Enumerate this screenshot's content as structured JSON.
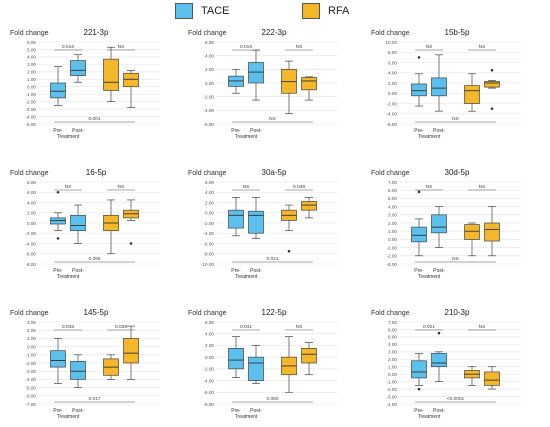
{
  "legend": {
    "items": [
      {
        "label": "TACE",
        "color": "#5BC0EB"
      },
      {
        "label": "RFA",
        "color": "#F5B72A"
      }
    ]
  },
  "chart_data": [
    {
      "type": "box",
      "title": "221-3p",
      "ylabel": "Fold change",
      "yticks": [
        "-5.00",
        "-4.00",
        "-3.00",
        "-2.00",
        "-1.00",
        "0.00",
        "1.00",
        "2.00",
        "3.00",
        "4.00",
        "5.00",
        "6.00"
      ],
      "ylim": [
        -5,
        6
      ],
      "categories": [
        "Pre-",
        "Post-"
      ],
      "xlabel": "Treatment",
      "series": [
        {
          "color": "#5BC0EB",
          "boxes": [
            {
              "min": -2.5,
              "q1": -1.5,
              "median": -0.6,
              "q3": 0.5,
              "max": 2.7,
              "outliers": []
            },
            {
              "min": 0.6,
              "q1": 1.5,
              "median": 2.2,
              "q3": 3.5,
              "max": 4.3,
              "outliers": []
            }
          ]
        },
        {
          "color": "#F5B72A",
          "boxes": [
            {
              "min": -2.0,
              "q1": -0.5,
              "median": 0.6,
              "q3": 3.7,
              "max": 5.3,
              "outliers": []
            },
            {
              "min": -2.8,
              "q1": 0.0,
              "median": 1.0,
              "q3": 1.8,
              "max": 2.2,
              "outliers": []
            }
          ]
        }
      ],
      "annotations": [
        {
          "text": "0.016",
          "type": "top",
          "from": 0,
          "to": 1
        },
        {
          "text": "NS",
          "type": "top",
          "from": 2,
          "to": 3
        },
        {
          "text": "0.001",
          "type": "bottom",
          "from": 0,
          "to": 2
        }
      ]
    },
    {
      "type": "box",
      "title": "222-3p",
      "ylabel": "Fold change",
      "yticks": [
        "-6.00",
        "-4.00",
        "-2.00",
        "0.00",
        "2.00",
        "4.00",
        "6.00"
      ],
      "ylim": [
        -6,
        6
      ],
      "categories": [
        "Pre-",
        "Post-"
      ],
      "xlabel": "Treatment",
      "series": [
        {
          "color": "#5BC0EB",
          "boxes": [
            {
              "min": -1.5,
              "q1": -0.5,
              "median": 0.3,
              "q3": 1.0,
              "max": 2.0,
              "outliers": []
            },
            {
              "min": -2.5,
              "q1": 0.0,
              "median": 1.6,
              "q3": 3.0,
              "max": 4.8,
              "outliers": []
            }
          ]
        },
        {
          "color": "#F5B72A",
          "boxes": [
            {
              "min": -4.5,
              "q1": -1.5,
              "median": 0.2,
              "q3": 2.0,
              "max": 3.2,
              "outliers": []
            },
            {
              "min": -2.5,
              "q1": -1.0,
              "median": 0.3,
              "q3": 0.8,
              "max": 0.9,
              "outliers": []
            }
          ]
        }
      ],
      "annotations": [
        {
          "text": "0.019",
          "type": "top",
          "from": 0,
          "to": 1
        },
        {
          "text": "NS",
          "type": "top",
          "from": 2,
          "to": 3
        },
        {
          "text": "NS",
          "type": "bottom",
          "from": 0,
          "to": 2
        }
      ]
    },
    {
      "type": "box",
      "title": "15b-5p",
      "ylabel": "Fold change",
      "yticks": [
        "-6.00",
        "-4.00",
        "-2.00",
        "0.00",
        "2.00",
        "4.00",
        "6.00",
        "8.00",
        "10.00"
      ],
      "ylim": [
        -6,
        10
      ],
      "categories": [
        "Pre-",
        "Post-"
      ],
      "xlabel": "Treatment",
      "series": [
        {
          "color": "#5BC0EB",
          "boxes": [
            {
              "min": -2.5,
              "q1": -0.5,
              "median": 0.5,
              "q3": 1.8,
              "max": 3.8,
              "outliers": [
                7.0
              ]
            },
            {
              "min": -3.5,
              "q1": -0.5,
              "median": 1.0,
              "q3": 3.0,
              "max": 7.5,
              "outliers": []
            }
          ]
        },
        {
          "color": "#F5B72A",
          "boxes": [
            {
              "min": -3.5,
              "q1": -2.0,
              "median": 0.5,
              "q3": 1.5,
              "max": 3.8,
              "outliers": []
            },
            {
              "min": 1.0,
              "q1": 1.2,
              "median": 2.0,
              "q3": 2.3,
              "max": 2.5,
              "outliers": [
                4.5,
                -3.0
              ]
            }
          ]
        }
      ],
      "annotations": [
        {
          "text": "NS",
          "type": "top",
          "from": 0,
          "to": 1
        },
        {
          "text": "NS",
          "type": "top",
          "from": 2,
          "to": 3
        },
        {
          "text": "NS",
          "type": "bottom",
          "from": 0,
          "to": 2
        }
      ]
    },
    {
      "type": "box",
      "title": "16-5p",
      "ylabel": "Fold change",
      "yticks": [
        "-8.00",
        "-6.00",
        "-4.00",
        "-2.00",
        "0.00",
        "2.00",
        "4.00",
        "6.00",
        "8.00"
      ],
      "ylim": [
        -8,
        8
      ],
      "categories": [
        "Pre-",
        "Post-"
      ],
      "xlabel": "Treatment",
      "series": [
        {
          "color": "#5BC0EB",
          "boxes": [
            {
              "min": -1.5,
              "q1": -0.2,
              "median": 0.5,
              "q3": 1.0,
              "max": 2.0,
              "outliers": [
                6.0,
                -3.0
              ]
            },
            {
              "min": -4.0,
              "q1": -1.5,
              "median": -0.5,
              "q3": 1.5,
              "max": 3.5,
              "outliers": []
            }
          ]
        },
        {
          "color": "#F5B72A",
          "boxes": [
            {
              "min": -6.0,
              "q1": -1.5,
              "median": 0.0,
              "q3": 1.5,
              "max": 4.5,
              "outliers": []
            },
            {
              "min": 0.5,
              "q1": 1.0,
              "median": 1.8,
              "q3": 2.5,
              "max": 4.5,
              "outliers": [
                -4.0
              ]
            }
          ]
        }
      ],
      "annotations": [
        {
          "text": "NS",
          "type": "top",
          "from": 0,
          "to": 1
        },
        {
          "text": "NS",
          "type": "top",
          "from": 2,
          "to": 3
        },
        {
          "text": "0.066",
          "type": "bottom",
          "from": 0,
          "to": 2
        }
      ]
    },
    {
      "type": "box",
      "title": "30a-5p",
      "ylabel": "Fold change",
      "yticks": [
        "-10.00",
        "-8.00",
        "-6.00",
        "-4.00",
        "-2.00",
        "0.00",
        "2.00",
        "4.00",
        "6.00"
      ],
      "ylim": [
        -10,
        6
      ],
      "categories": [
        "Pre-",
        "Post-"
      ],
      "xlabel": "Treatment",
      "series": [
        {
          "color": "#5BC0EB",
          "boxes": [
            {
              "min": -4.5,
              "q1": -3.0,
              "median": -0.5,
              "q3": 0.5,
              "max": 3.0,
              "outliers": []
            },
            {
              "min": -5.0,
              "q1": -4.0,
              "median": -0.5,
              "q3": 0.3,
              "max": 3.0,
              "outliers": []
            }
          ]
        },
        {
          "color": "#F5B72A",
          "boxes": [
            {
              "min": -3.5,
              "q1": -1.5,
              "median": -0.5,
              "q3": 0.5,
              "max": 1.5,
              "outliers": [
                -7.5
              ]
            },
            {
              "min": -1.0,
              "q1": 0.5,
              "median": 1.5,
              "q3": 2.2,
              "max": 3.0,
              "outliers": []
            }
          ]
        }
      ],
      "annotations": [
        {
          "text": "NS",
          "type": "top",
          "from": 0,
          "to": 1
        },
        {
          "text": "0.038",
          "type": "top",
          "from": 2,
          "to": 3
        },
        {
          "text": "0.021",
          "type": "bottom",
          "from": 0,
          "to": 2
        }
      ]
    },
    {
      "type": "box",
      "title": "30d-5p",
      "ylabel": "Fold change",
      "yticks": [
        "-3.00",
        "-2.00",
        "-1.00",
        "0.00",
        "1.00",
        "2.00",
        "3.00",
        "4.00",
        "5.00",
        "6.00",
        "7.00"
      ],
      "ylim": [
        -3,
        7
      ],
      "categories": [
        "Pre-",
        "Post-"
      ],
      "xlabel": "Treatment",
      "series": [
        {
          "color": "#5BC0EB",
          "boxes": [
            {
              "min": -2.0,
              "q1": -0.3,
              "median": 0.5,
              "q3": 1.5,
              "max": 2.5,
              "outliers": [
                5.8
              ]
            },
            {
              "min": -1.0,
              "q1": 0.8,
              "median": 1.5,
              "q3": 3.0,
              "max": 4.0,
              "outliers": []
            }
          ]
        },
        {
          "color": "#F5B72A",
          "boxes": [
            {
              "min": -2.0,
              "q1": 0.0,
              "median": 1.0,
              "q3": 1.8,
              "max": 2.0,
              "outliers": []
            },
            {
              "min": -2.0,
              "q1": -0.2,
              "median": 1.2,
              "q3": 2.0,
              "max": 4.0,
              "outliers": []
            }
          ]
        }
      ],
      "annotations": [
        {
          "text": "NS",
          "type": "top",
          "from": 0,
          "to": 1
        },
        {
          "text": "NS",
          "type": "top",
          "from": 2,
          "to": 3
        },
        {
          "text": "NS",
          "type": "bottom",
          "from": 0,
          "to": 2
        }
      ]
    },
    {
      "type": "box",
      "title": "145-5p",
      "ylabel": "Fold change",
      "yticks": [
        "-7.00",
        "-6.00",
        "-5.00",
        "-4.00",
        "-3.00",
        "-2.00",
        "-1.00",
        "0.00",
        "1.00",
        "2.00",
        "3.00"
      ],
      "ylim": [
        -7,
        3
      ],
      "categories": [
        "Pre-",
        "Post-"
      ],
      "xlabel": "Treatment",
      "series": [
        {
          "color": "#5BC0EB",
          "boxes": [
            {
              "min": -4.5,
              "q1": -2.5,
              "median": -1.7,
              "q3": -0.5,
              "max": 1.0,
              "outliers": []
            },
            {
              "min": -5.0,
              "q1": -4.0,
              "median": -3.0,
              "q3": -1.8,
              "max": -1.0,
              "outliers": []
            }
          ]
        },
        {
          "color": "#F5B72A",
          "boxes": [
            {
              "min": -4.0,
              "q1": -3.5,
              "median": -2.5,
              "q3": -1.5,
              "max": -1.0,
              "outliers": []
            },
            {
              "min": -4.0,
              "q1": -2.0,
              "median": -0.8,
              "q3": 1.0,
              "max": 2.5,
              "outliers": []
            }
          ]
        }
      ],
      "annotations": [
        {
          "text": "0.038",
          "type": "top",
          "from": 0,
          "to": 1
        },
        {
          "text": "0.038",
          "type": "top",
          "from": 2,
          "to": 3
        },
        {
          "text": "0.017",
          "type": "bottom",
          "from": 0,
          "to": 2
        }
      ]
    },
    {
      "type": "box",
      "title": "122-5p",
      "ylabel": "Fold change",
      "yticks": [
        "-8.00",
        "-6.00",
        "-4.00",
        "-2.00",
        "0.00",
        "2.00",
        "4.00",
        "6.00"
      ],
      "ylim": [
        -8,
        6
      ],
      "categories": [
        "Pre-",
        "Post-"
      ],
      "xlabel": "Treatment",
      "series": [
        {
          "color": "#5BC0EB",
          "boxes": [
            {
              "min": -3.5,
              "q1": -2.0,
              "median": -0.5,
              "q3": 1.5,
              "max": 3.5,
              "outliers": []
            },
            {
              "min": -4.5,
              "q1": -4.0,
              "median": -1.0,
              "q3": 0.0,
              "max": 2.0,
              "outliers": []
            }
          ]
        },
        {
          "color": "#F5B72A",
          "boxes": [
            {
              "min": -6.0,
              "q1": -3.0,
              "median": -1.5,
              "q3": 0.0,
              "max": 3.5,
              "outliers": []
            },
            {
              "min": -3.0,
              "q1": -1.0,
              "median": 0.5,
              "q3": 1.5,
              "max": 2.5,
              "outliers": []
            }
          ]
        }
      ],
      "annotations": [
        {
          "text": "0.031",
          "type": "top",
          "from": 0,
          "to": 1
        },
        {
          "text": "NS",
          "type": "top",
          "from": 2,
          "to": 3
        },
        {
          "text": "0.050",
          "type": "bottom",
          "from": 0,
          "to": 2
        }
      ]
    },
    {
      "type": "box",
      "title": "210-3p",
      "ylabel": "Fold change",
      "yticks": [
        "-4.00",
        "-3.00",
        "-2.00",
        "-1.00",
        "0.00",
        "1.00",
        "2.00",
        "3.00",
        "4.00",
        "5.00",
        "6.00",
        "7.00"
      ],
      "ylim": [
        -4,
        7
      ],
      "categories": [
        "Pre-",
        "Post-"
      ],
      "xlabel": "Treatment",
      "series": [
        {
          "color": "#5BC0EB",
          "boxes": [
            {
              "min": -1.5,
              "q1": -0.5,
              "median": 0.3,
              "q3": 1.8,
              "max": 2.8,
              "outliers": [
                -2.0
              ]
            },
            {
              "min": -1.0,
              "q1": 1.0,
              "median": 1.5,
              "q3": 2.8,
              "max": 3.0,
              "outliers": [
                5.5
              ]
            }
          ]
        },
        {
          "color": "#F5B72A",
          "boxes": [
            {
              "min": -1.5,
              "q1": -0.5,
              "median": 0.0,
              "q3": 0.5,
              "max": 1.0,
              "outliers": []
            },
            {
              "min": -2.0,
              "q1": -1.5,
              "median": -0.8,
              "q3": 0.3,
              "max": 1.0,
              "outliers": []
            }
          ]
        }
      ],
      "annotations": [
        {
          "text": "0.021",
          "type": "top",
          "from": 0,
          "to": 1
        },
        {
          "text": "NS",
          "type": "top",
          "from": 2,
          "to": 3
        },
        {
          "text": "<0.0001",
          "type": "bottom",
          "from": 0,
          "to": 2
        }
      ]
    }
  ]
}
